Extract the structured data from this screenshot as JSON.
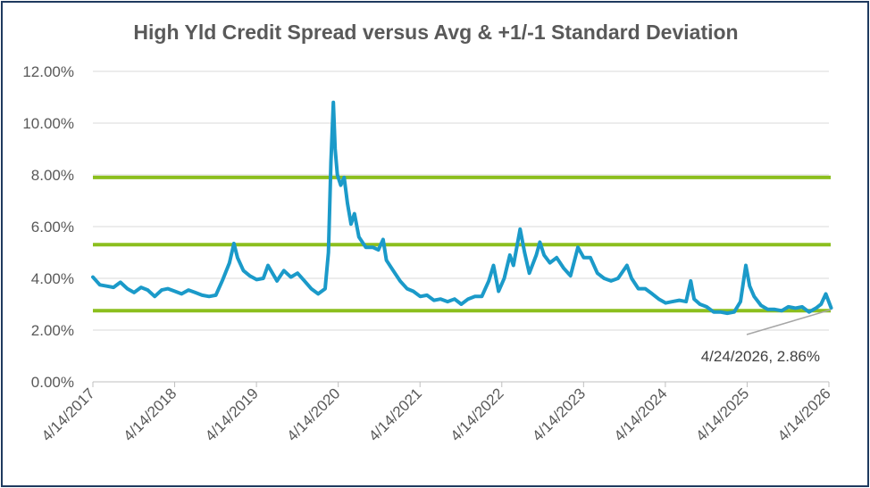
{
  "chart_data": {
    "type": "line",
    "title": "High Yld Credit Spread versus Avg & +1/-1 Standard Deviation",
    "xlabel": "",
    "ylabel": "",
    "ylim": [
      0,
      12
    ],
    "y_ticks": [
      "0.00%",
      "2.00%",
      "4.00%",
      "6.00%",
      "8.00%",
      "10.00%",
      "12.00%"
    ],
    "x_ticks": [
      "4/14/2017",
      "4/14/2018",
      "4/14/2019",
      "4/14/2020",
      "4/14/2021",
      "4/14/2022",
      "4/14/2023",
      "4/14/2024",
      "4/14/2025",
      "4/14/2026"
    ],
    "x_range": [
      "2017-04-14",
      "2026-04-24"
    ],
    "grid": true,
    "reference_lines": [
      {
        "value": 7.9,
        "color": "#8cbf1e"
      },
      {
        "value": 5.3,
        "color": "#8cbf1e"
      },
      {
        "value": 2.75,
        "color": "#8cbf1e"
      }
    ],
    "series": [
      {
        "color": "#1b9ac9",
        "points": [
          [
            "2017-04-14",
            4.05
          ],
          [
            "2017-05-15",
            3.75
          ],
          [
            "2017-06-15",
            3.7
          ],
          [
            "2017-07-15",
            3.65
          ],
          [
            "2017-08-15",
            3.85
          ],
          [
            "2017-09-15",
            3.6
          ],
          [
            "2017-10-15",
            3.45
          ],
          [
            "2017-11-15",
            3.65
          ],
          [
            "2017-12-15",
            3.55
          ],
          [
            "2018-01-15",
            3.3
          ],
          [
            "2018-02-15",
            3.55
          ],
          [
            "2018-03-15",
            3.6
          ],
          [
            "2018-04-15",
            3.5
          ],
          [
            "2018-05-15",
            3.4
          ],
          [
            "2018-06-15",
            3.55
          ],
          [
            "2018-07-15",
            3.45
          ],
          [
            "2018-08-15",
            3.35
          ],
          [
            "2018-09-15",
            3.3
          ],
          [
            "2018-10-15",
            3.35
          ],
          [
            "2018-11-15",
            3.95
          ],
          [
            "2018-12-15",
            4.6
          ],
          [
            "2019-01-04",
            5.35
          ],
          [
            "2019-01-20",
            4.8
          ],
          [
            "2019-02-15",
            4.3
          ],
          [
            "2019-03-15",
            4.1
          ],
          [
            "2019-04-15",
            3.95
          ],
          [
            "2019-05-15",
            4.0
          ],
          [
            "2019-06-05",
            4.5
          ],
          [
            "2019-07-15",
            3.9
          ],
          [
            "2019-08-15",
            4.3
          ],
          [
            "2019-09-15",
            4.05
          ],
          [
            "2019-10-15",
            4.2
          ],
          [
            "2019-11-15",
            3.9
          ],
          [
            "2019-12-15",
            3.6
          ],
          [
            "2020-01-15",
            3.4
          ],
          [
            "2020-02-15",
            3.6
          ],
          [
            "2020-03-01",
            5.0
          ],
          [
            "2020-03-12",
            8.5
          ],
          [
            "2020-03-23",
            10.8
          ],
          [
            "2020-03-31",
            9.0
          ],
          [
            "2020-04-10",
            8.0
          ],
          [
            "2020-04-25",
            7.6
          ],
          [
            "2020-05-10",
            7.9
          ],
          [
            "2020-05-25",
            6.9
          ],
          [
            "2020-06-10",
            6.1
          ],
          [
            "2020-06-25",
            6.5
          ],
          [
            "2020-07-15",
            5.6
          ],
          [
            "2020-08-15",
            5.2
          ],
          [
            "2020-09-15",
            5.2
          ],
          [
            "2020-10-10",
            5.1
          ],
          [
            "2020-10-31",
            5.5
          ],
          [
            "2020-11-15",
            4.7
          ],
          [
            "2020-12-15",
            4.3
          ],
          [
            "2021-01-15",
            3.9
          ],
          [
            "2021-02-15",
            3.6
          ],
          [
            "2021-03-15",
            3.5
          ],
          [
            "2021-04-15",
            3.3
          ],
          [
            "2021-05-15",
            3.35
          ],
          [
            "2021-06-15",
            3.15
          ],
          [
            "2021-07-15",
            3.2
          ],
          [
            "2021-08-15",
            3.1
          ],
          [
            "2021-09-15",
            3.2
          ],
          [
            "2021-10-15",
            3.0
          ],
          [
            "2021-11-15",
            3.2
          ],
          [
            "2021-12-15",
            3.3
          ],
          [
            "2022-01-15",
            3.3
          ],
          [
            "2022-02-15",
            3.9
          ],
          [
            "2022-03-08",
            4.5
          ],
          [
            "2022-03-31",
            3.5
          ],
          [
            "2022-04-25",
            4.0
          ],
          [
            "2022-05-20",
            4.9
          ],
          [
            "2022-06-05",
            4.5
          ],
          [
            "2022-07-05",
            5.9
          ],
          [
            "2022-07-25",
            5.0
          ],
          [
            "2022-08-15",
            4.2
          ],
          [
            "2022-09-15",
            4.9
          ],
          [
            "2022-10-01",
            5.4
          ],
          [
            "2022-10-20",
            4.9
          ],
          [
            "2022-11-15",
            4.6
          ],
          [
            "2022-12-15",
            4.8
          ],
          [
            "2023-01-15",
            4.4
          ],
          [
            "2023-02-15",
            4.1
          ],
          [
            "2023-03-20",
            5.2
          ],
          [
            "2023-04-15",
            4.8
          ],
          [
            "2023-05-15",
            4.8
          ],
          [
            "2023-06-15",
            4.2
          ],
          [
            "2023-07-15",
            4.0
          ],
          [
            "2023-08-15",
            3.9
          ],
          [
            "2023-09-15",
            4.0
          ],
          [
            "2023-10-25",
            4.5
          ],
          [
            "2023-11-15",
            4.0
          ],
          [
            "2023-12-15",
            3.6
          ],
          [
            "2024-01-15",
            3.6
          ],
          [
            "2024-02-15",
            3.4
          ],
          [
            "2024-03-15",
            3.2
          ],
          [
            "2024-04-15",
            3.05
          ],
          [
            "2024-05-15",
            3.1
          ],
          [
            "2024-06-15",
            3.15
          ],
          [
            "2024-07-15",
            3.1
          ],
          [
            "2024-08-05",
            3.9
          ],
          [
            "2024-08-20",
            3.2
          ],
          [
            "2024-09-15",
            3.0
          ],
          [
            "2024-10-15",
            2.9
          ],
          [
            "2024-11-15",
            2.7
          ],
          [
            "2024-12-15",
            2.7
          ],
          [
            "2025-01-15",
            2.65
          ],
          [
            "2025-02-15",
            2.7
          ],
          [
            "2025-03-15",
            3.1
          ],
          [
            "2025-04-08",
            4.5
          ],
          [
            "2025-04-25",
            3.7
          ],
          [
            "2025-05-15",
            3.3
          ],
          [
            "2025-06-15",
            2.95
          ],
          [
            "2025-07-15",
            2.8
          ],
          [
            "2025-08-15",
            2.8
          ],
          [
            "2025-09-15",
            2.75
          ],
          [
            "2025-10-15",
            2.9
          ],
          [
            "2025-11-15",
            2.85
          ],
          [
            "2025-12-15",
            2.9
          ],
          [
            "2026-01-15",
            2.7
          ],
          [
            "2026-02-15",
            2.85
          ],
          [
            "2026-03-10",
            3.0
          ],
          [
            "2026-03-31",
            3.4
          ],
          [
            "2026-04-24",
            2.86
          ]
        ]
      }
    ],
    "annotation": {
      "text": "4/24/2026, 2.86%",
      "date": "2026-04-24",
      "value": 2.86
    }
  }
}
